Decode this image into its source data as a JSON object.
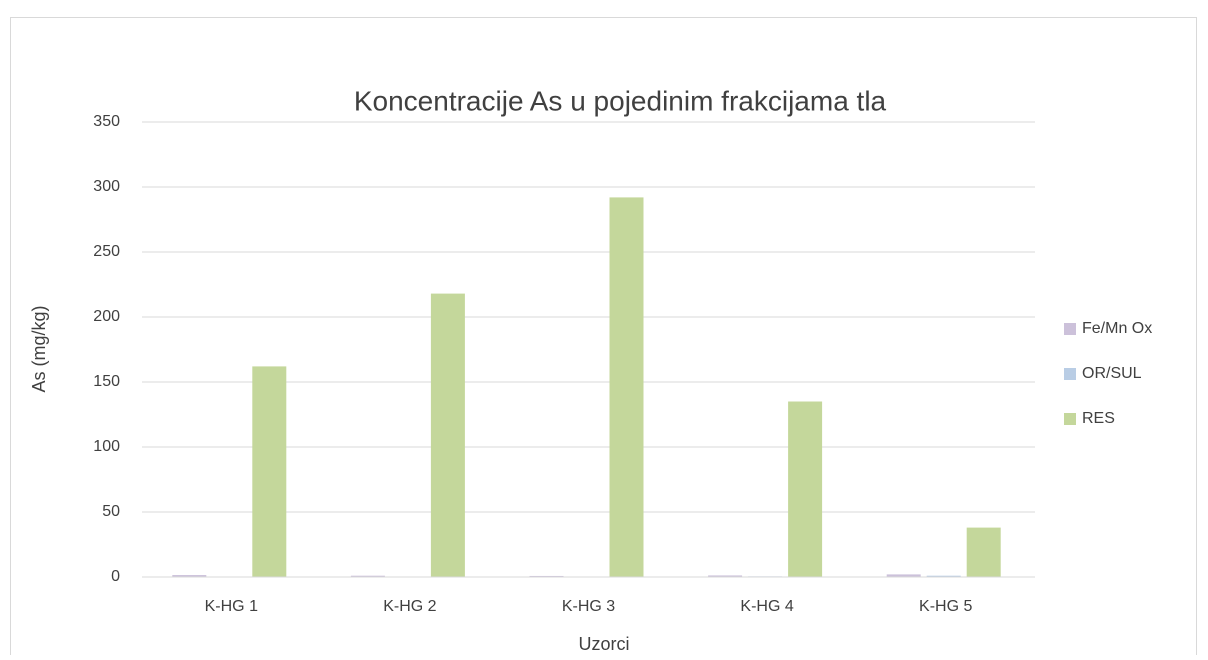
{
  "chart_data": {
    "type": "bar",
    "title": "Koncentracije As u pojedinim frakcijama tla",
    "x_label": "Uzorci",
    "y_label": "As  (mg/kg)",
    "categories": [
      "K-HG 1",
      "K-HG 2",
      "K-HG 3",
      "K-HG 4",
      "K-HG 5"
    ],
    "series": [
      {
        "name": "Fe/Mn Ox",
        "color": "#ccc1da",
        "values": [
          1.5,
          1,
          0.8,
          1.2,
          2
        ]
      },
      {
        "name": "OR/SUL",
        "color": "#b9cde5",
        "values": [
          0.3,
          0.3,
          0.3,
          0.5,
          1
        ]
      },
      {
        "name": "RES",
        "color": "#c4d79b",
        "values": [
          162,
          218,
          292,
          135,
          38
        ]
      }
    ],
    "ylim": [
      0,
      350
    ],
    "yticks": [
      0,
      50,
      100,
      150,
      200,
      250,
      300,
      350
    ],
    "grid": true,
    "legend": "right"
  }
}
